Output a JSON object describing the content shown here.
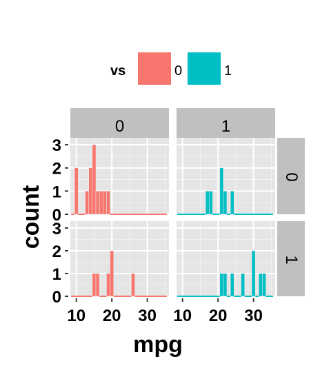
{
  "chart_data": {
    "type": "bar",
    "xlabel": "mpg",
    "ylabel": "count",
    "x_ticks": [
      10,
      20,
      30
    ],
    "y_ticks": [
      0,
      1,
      2,
      3
    ],
    "xlim": [
      8.3,
      36.1
    ],
    "ylim": [
      0,
      3
    ],
    "bin_width": 1,
    "legend": {
      "title": "vs",
      "placement": "top",
      "entries": [
        {
          "label": "0",
          "color": "#F8766D"
        },
        {
          "label": "1",
          "color": "#00BFC4"
        }
      ]
    },
    "facet_cols": {
      "variable": "vs",
      "labels": [
        "0",
        "1"
      ]
    },
    "facet_rows": {
      "variable": "am",
      "labels": [
        "0",
        "1"
      ]
    },
    "panels": [
      {
        "row": "0",
        "col": "0",
        "color": "#F8766D",
        "bins": [
          {
            "x": 10,
            "count": 2
          },
          {
            "x": 13,
            "count": 1
          },
          {
            "x": 14,
            "count": 2
          },
          {
            "x": 15,
            "count": 3
          },
          {
            "x": 16,
            "count": 1
          },
          {
            "x": 17,
            "count": 1
          },
          {
            "x": 18,
            "count": 1
          },
          {
            "x": 19,
            "count": 1
          }
        ]
      },
      {
        "row": "0",
        "col": "1",
        "color": "#00BFC4",
        "bins": [
          {
            "x": 17,
            "count": 1
          },
          {
            "x": 18,
            "count": 1
          },
          {
            "x": 21,
            "count": 2
          },
          {
            "x": 22,
            "count": 1
          },
          {
            "x": 24,
            "count": 1
          }
        ]
      },
      {
        "row": "1",
        "col": "0",
        "color": "#F8766D",
        "bins": [
          {
            "x": 15,
            "count": 1
          },
          {
            "x": 16,
            "count": 1
          },
          {
            "x": 19,
            "count": 1
          },
          {
            "x": 20,
            "count": 2
          },
          {
            "x": 26,
            "count": 1
          }
        ]
      },
      {
        "row": "1",
        "col": "1",
        "color": "#00BFC4",
        "bins": [
          {
            "x": 21,
            "count": 1
          },
          {
            "x": 22,
            "count": 1
          },
          {
            "x": 24,
            "count": 1
          },
          {
            "x": 27,
            "count": 1
          },
          {
            "x": 30,
            "count": 2
          },
          {
            "x": 32,
            "count": 1
          },
          {
            "x": 33,
            "count": 1
          }
        ]
      }
    ]
  }
}
